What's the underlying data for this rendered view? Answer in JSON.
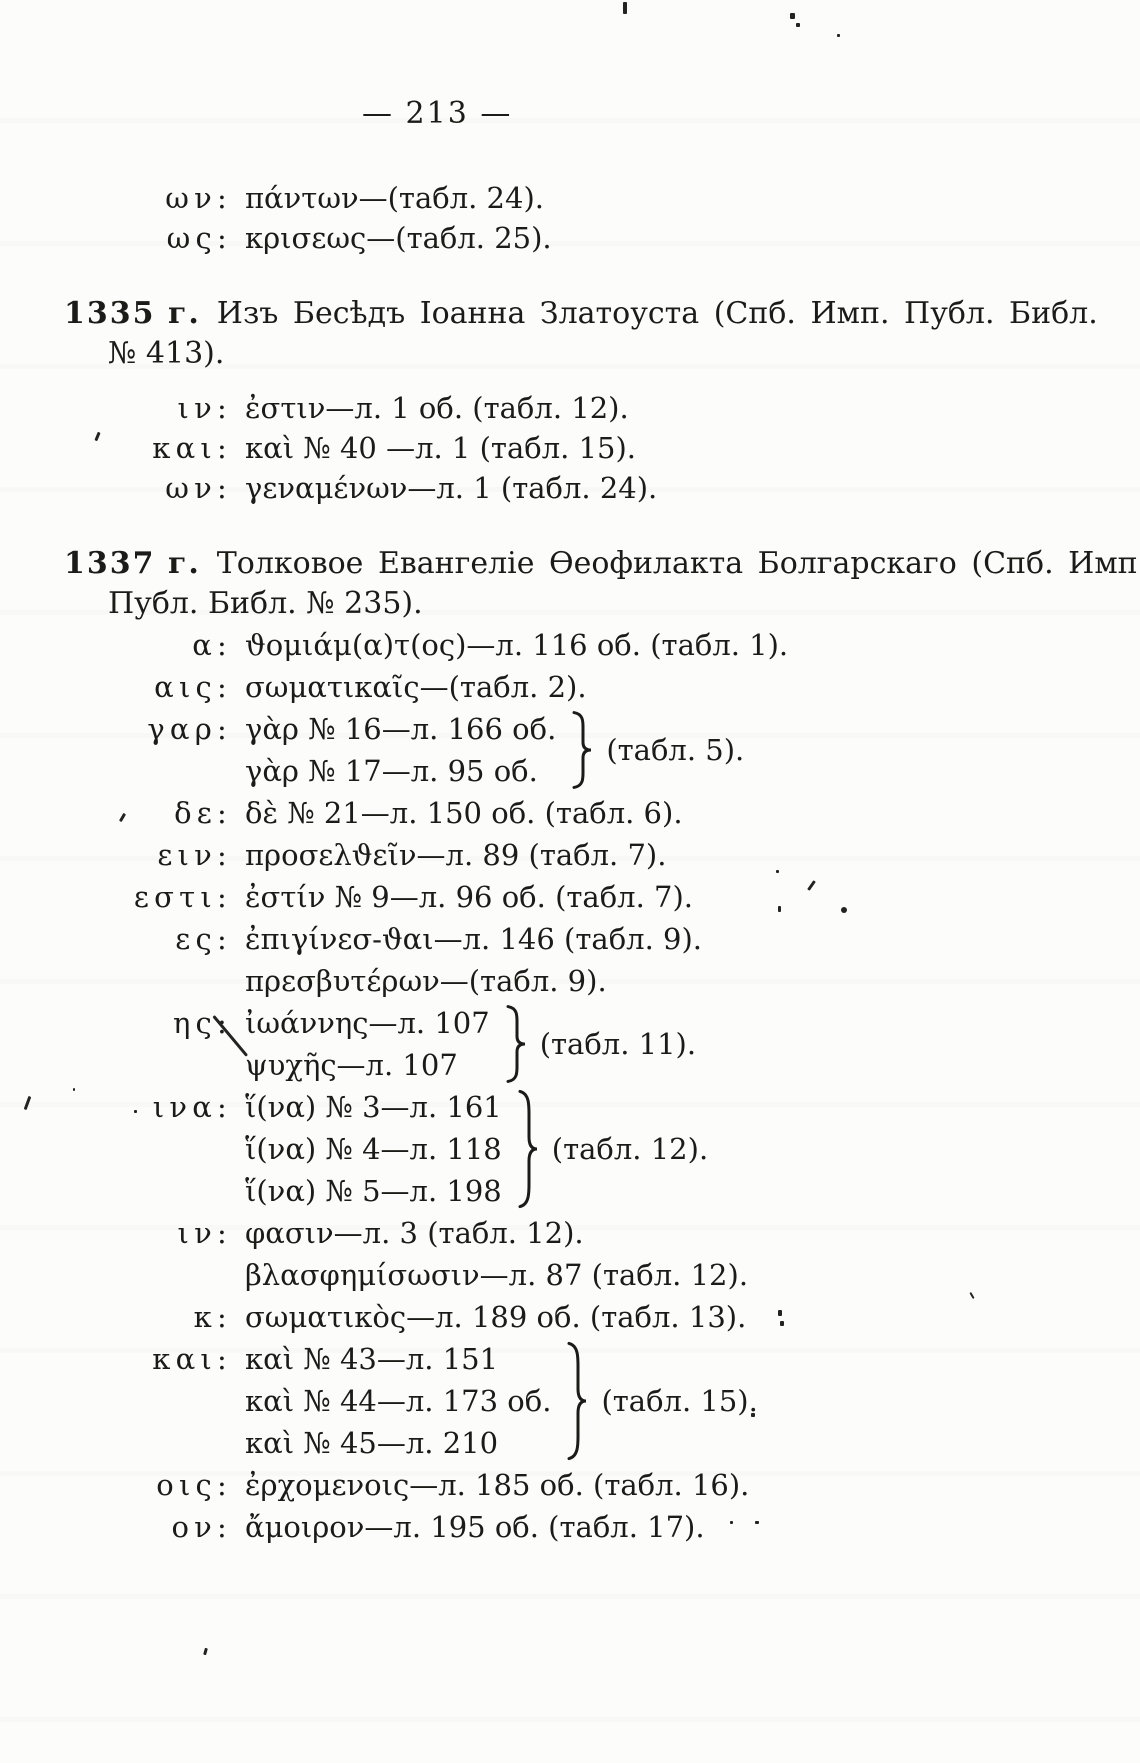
{
  "page": {
    "number": "— 213 —",
    "paper_color": "#fcfcfa",
    "ink_color": "#1b1b18"
  },
  "carryover": {
    "entries": [
      {
        "key": "ων",
        "lines": [
          "πάντων—(табл. 24)."
        ]
      },
      {
        "key": "ως",
        "lines": [
          "κρισεως—(табл. 25)."
        ]
      }
    ]
  },
  "sections": [
    {
      "year": "1335 г.",
      "title": "Изъ Бесѣдъ Іоанна Златоуста (Спб. Имп. Публ. Библ.",
      "title_cont": "№ 413).",
      "entries": [
        {
          "key": "ιν",
          "lines": [
            "ἐστιν—л. 1 об. (табл. 12)."
          ]
        },
        {
          "key": "και",
          "lines": [
            "καὶ № 40 —л. 1 (табл. 15)."
          ]
        },
        {
          "key": "ων",
          "lines": [
            "γεναμένων—л. 1 (табл. 24)."
          ]
        }
      ]
    },
    {
      "year": "1337 г.",
      "title": "Толковое Евангеліе Ѳеофилакта Болгарскаго (Спб. Имп.",
      "title_cont": "Публ. Библ. № 235).",
      "entries": [
        {
          "key": "α",
          "lines": [
            "ϑομιάμ(α)τ(ος)—л. 116 об. (табл. 1)."
          ]
        },
        {
          "key": "αις",
          "lines": [
            "σωματικαῖς—(табл. 2)."
          ]
        },
        {
          "key": "γαρ",
          "lines": [
            "γὰρ № 16—л. 166 об.",
            "γὰρ № 17—л. 95 об."
          ],
          "brace_label": "(табл. 5)."
        },
        {
          "key": "δε",
          "lines": [
            "δὲ № 21—л. 150 об. (табл. 6)."
          ]
        },
        {
          "key": "ειν",
          "lines": [
            "προσελϑεῖν—л. 89 (табл. 7)."
          ]
        },
        {
          "key": "εστι",
          "lines": [
            "ἐστίν № 9—л. 96 об. (табл. 7)."
          ]
        },
        {
          "key": "ες",
          "lines": [
            "ἐπιγίνεσ-ϑαι—л. 146 (табл. 9).",
            "πρεσβυτέρων—(табл. 9)."
          ]
        },
        {
          "key": "ης",
          "lines": [
            "ἰωάννης—л. 107",
            "ψυχῆς—л. 107"
          ],
          "brace_label": "(табл. 11)."
        },
        {
          "key": "ινα",
          "lines": [
            "ἵ(να) № 3—л. 161",
            "ἵ(να) № 4—л. 118",
            "ἵ(να) № 5—л. 198"
          ],
          "brace_label": "(табл. 12)."
        },
        {
          "key": "ιν",
          "lines": [
            "φασιν—л. 3 (табл. 12).",
            "βλασφημίσωσιν—л. 87 (табл. 12)."
          ]
        },
        {
          "key": "κ",
          "lines": [
            "σωματικὸς—л. 189 об. (табл. 13)."
          ]
        },
        {
          "key": "και",
          "lines": [
            "καὶ № 43—л. 151",
            "καὶ № 44—л. 173 об.",
            "καὶ № 45—л. 210"
          ],
          "brace_label": "(табл. 15)."
        },
        {
          "key": "οις",
          "lines": [
            "ἐρχομενοις—л. 185 об. (табл. 16)."
          ]
        },
        {
          "key": "ον",
          "lines": [
            "ἄμοιρον—л. 195 об. (табл. 17)."
          ]
        }
      ]
    }
  ]
}
